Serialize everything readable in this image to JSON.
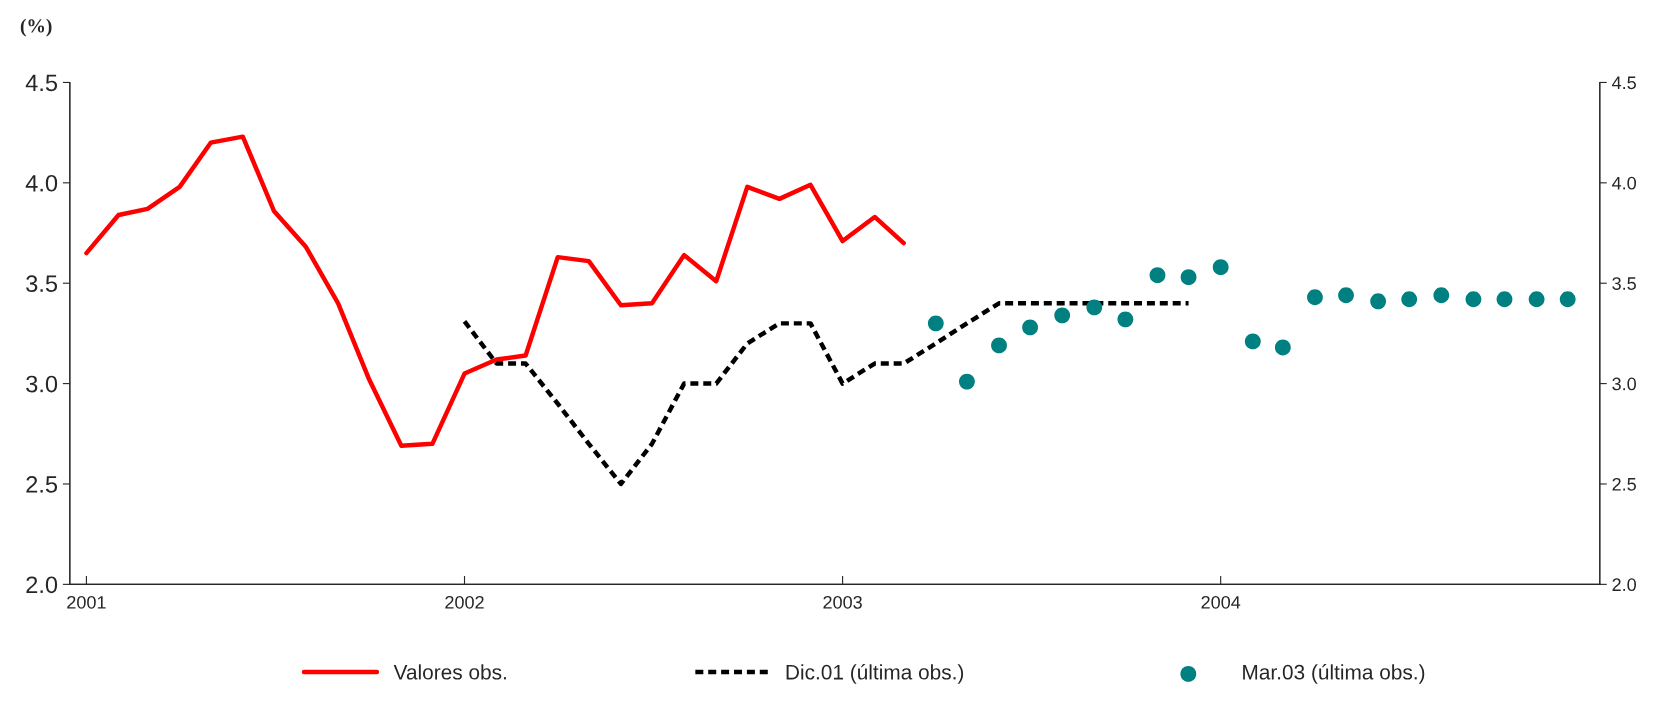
{
  "chart_data": {
    "type": "line",
    "ylabel": "(%)",
    "xlim": [
      "2000-12-16",
      "2005-01-01"
    ],
    "xticks": [
      {
        "value": "2001",
        "label": "2001"
      },
      {
        "value": "2002",
        "label": "2002"
      },
      {
        "value": "2003",
        "label": "2003"
      },
      {
        "value": "2004",
        "label": "2004"
      }
    ],
    "ylim": [
      2.0,
      4.5
    ],
    "yticks": [
      {
        "value": 2.0,
        "label": "2.0"
      },
      {
        "value": 2.5,
        "label": "2.5"
      },
      {
        "value": 3.0,
        "label": "3.0"
      },
      {
        "value": 3.5,
        "label": "3.5"
      },
      {
        "value": 4.0,
        "label": "4.0"
      },
      {
        "value": 4.5,
        "label": "4.5"
      }
    ],
    "y2lim": [
      2.0,
      4.5
    ],
    "y2ticks": [
      {
        "value": 2.0,
        "label": "2.0"
      },
      {
        "value": 2.5,
        "label": "2.5"
      },
      {
        "value": 3.0,
        "label": "3.0"
      },
      {
        "value": 3.5,
        "label": "3.5"
      },
      {
        "value": 4.0,
        "label": "4.0"
      },
      {
        "value": 4.5,
        "label": "4.5"
      }
    ],
    "grid": false,
    "legend": "bottom",
    "series": [
      {
        "name": "Valores obs.",
        "color": "#ff0000",
        "line_style": "solid",
        "marker": "none",
        "x": [
          "2001-01",
          "2001-02",
          "2001-03",
          "2001-04",
          "2001-05",
          "2001-06",
          "2001-07",
          "2001-08",
          "2001-09",
          "2001-10",
          "2001-11",
          "2001-12",
          "2002-01",
          "2002-02",
          "2002-03",
          "2002-04",
          "2002-05",
          "2002-06",
          "2002-07",
          "2002-08",
          "2002-09",
          "2002-10",
          "2002-11",
          "2002-12",
          "2003-01",
          "2003-02",
          "2003-03"
        ],
        "values": [
          3.65,
          3.84,
          3.87,
          3.98,
          4.2,
          4.23,
          3.86,
          3.68,
          3.4,
          3.02,
          2.69,
          2.7,
          3.05,
          3.12,
          3.14,
          3.63,
          3.61,
          3.39,
          3.4,
          3.64,
          3.51,
          3.98,
          3.92,
          3.99,
          3.71,
          3.83,
          3.7
        ]
      },
      {
        "name": "Dic.01 (última obs.)",
        "color": "#000000",
        "line_style": "dashed",
        "marker": "none",
        "x": [
          "2002-01",
          "2002-02",
          "2002-03",
          "2002-04",
          "2002-05",
          "2002-06",
          "2002-07",
          "2002-08",
          "2002-09",
          "2002-10",
          "2002-11",
          "2002-12",
          "2003-01",
          "2003-02",
          "2003-03",
          "2003-04",
          "2003-05",
          "2003-06",
          "2003-07",
          "2003-08",
          "2003-09",
          "2003-10",
          "2003-11",
          "2003-12"
        ],
        "values": [
          3.31,
          3.1,
          3.1,
          2.9,
          2.7,
          2.5,
          2.7,
          3.0,
          3.0,
          3.2,
          3.3,
          3.3,
          3.0,
          3.1,
          3.1,
          3.2,
          3.3,
          3.4,
          3.4,
          3.4,
          3.4,
          3.4,
          3.4,
          3.4
        ]
      },
      {
        "name": "Mar.03 (última obs.)",
        "type": "scatter",
        "color": "#008080",
        "marker": "circle",
        "x": [
          "2003-04",
          "2003-05",
          "2003-06",
          "2003-07",
          "2003-08",
          "2003-09",
          "2003-10",
          "2003-11",
          "2003-12",
          "2004-01",
          "2004-02",
          "2004-03",
          "2004-04",
          "2004-05",
          "2004-06",
          "2004-07",
          "2004-08",
          "2004-09",
          "2004-10",
          "2004-11",
          "2004-12"
        ],
        "values": [
          3.3,
          3.01,
          3.19,
          3.28,
          3.34,
          3.38,
          3.32,
          3.54,
          3.53,
          3.58,
          3.21,
          3.18,
          3.43,
          3.44,
          3.41,
          3.42,
          3.44,
          3.42,
          3.42,
          3.42,
          3.42
        ]
      }
    ]
  }
}
